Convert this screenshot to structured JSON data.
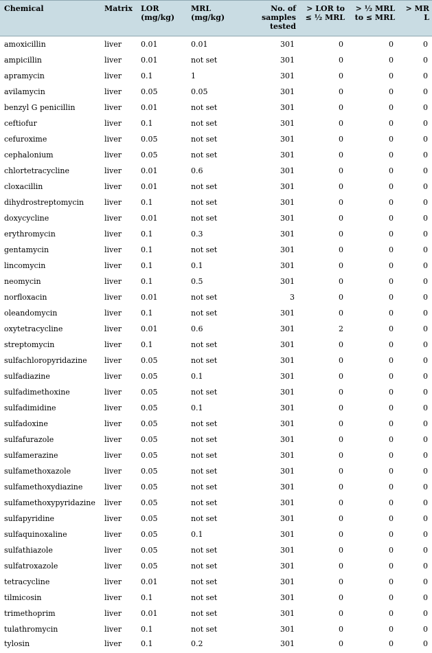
{
  "headers": {
    "chemical": "Chemical",
    "matrix": "Matrix",
    "lor": [
      "LOR",
      "(mg/kg)"
    ],
    "mrl": [
      "MRL",
      "(mg/kg)"
    ],
    "samples": [
      "No. of",
      "samples",
      "tested"
    ],
    "lor_half": [
      "> LOR to",
      "≤ ½ MRL"
    ],
    "half_mrl": [
      "> ½ MRL",
      "to ≤ MRL"
    ],
    "over_mrl": [
      "> MR",
      "L"
    ]
  },
  "rows": [
    {
      "chemical": "amoxicillin",
      "matrix": "liver",
      "lor": "0.01",
      "mrl": "0.01",
      "samples": "301",
      "lor_half": "0",
      "half_mrl": "0",
      "over_mrl": "0"
    },
    {
      "chemical": "ampicillin",
      "matrix": "liver",
      "lor": "0.01",
      "mrl": "not set",
      "samples": "301",
      "lor_half": "0",
      "half_mrl": "0",
      "over_mrl": "0"
    },
    {
      "chemical": "apramycin",
      "matrix": "liver",
      "lor": "0.1",
      "mrl": "1",
      "samples": "301",
      "lor_half": "0",
      "half_mrl": "0",
      "over_mrl": "0"
    },
    {
      "chemical": "avilamycin",
      "matrix": "liver",
      "lor": "0.05",
      "mrl": "0.05",
      "samples": "301",
      "lor_half": "0",
      "half_mrl": "0",
      "over_mrl": "0"
    },
    {
      "chemical": "benzyl G penicillin",
      "matrix": "liver",
      "lor": "0.01",
      "mrl": "not set",
      "samples": "301",
      "lor_half": "0",
      "half_mrl": "0",
      "over_mrl": "0"
    },
    {
      "chemical": "ceftiofur",
      "matrix": "liver",
      "lor": "0.1",
      "mrl": "not set",
      "samples": "301",
      "lor_half": "0",
      "half_mrl": "0",
      "over_mrl": "0"
    },
    {
      "chemical": "cefuroxime",
      "matrix": "liver",
      "lor": "0.05",
      "mrl": "not set",
      "samples": "301",
      "lor_half": "0",
      "half_mrl": "0",
      "over_mrl": "0"
    },
    {
      "chemical": "cephalonium",
      "matrix": "liver",
      "lor": "0.05",
      "mrl": "not set",
      "samples": "301",
      "lor_half": "0",
      "half_mrl": "0",
      "over_mrl": "0"
    },
    {
      "chemical": "chlortetracycline",
      "matrix": "liver",
      "lor": "0.01",
      "mrl": "0.6",
      "samples": "301",
      "lor_half": "0",
      "half_mrl": "0",
      "over_mrl": "0"
    },
    {
      "chemical": "cloxacillin",
      "matrix": "liver",
      "lor": "0.01",
      "mrl": "not set",
      "samples": "301",
      "lor_half": "0",
      "half_mrl": "0",
      "over_mrl": "0"
    },
    {
      "chemical": "dihydrostreptomycin",
      "matrix": "liver",
      "lor": "0.1",
      "mrl": "not set",
      "samples": "301",
      "lor_half": "0",
      "half_mrl": "0",
      "over_mrl": "0"
    },
    {
      "chemical": "doxycycline",
      "matrix": "liver",
      "lor": "0.01",
      "mrl": "not set",
      "samples": "301",
      "lor_half": "0",
      "half_mrl": "0",
      "over_mrl": "0"
    },
    {
      "chemical": "erythromycin",
      "matrix": "liver",
      "lor": "0.1",
      "mrl": "0.3",
      "samples": "301",
      "lor_half": "0",
      "half_mrl": "0",
      "over_mrl": "0"
    },
    {
      "chemical": "gentamycin",
      "matrix": "liver",
      "lor": "0.1",
      "mrl": "not set",
      "samples": "301",
      "lor_half": "0",
      "half_mrl": "0",
      "over_mrl": "0"
    },
    {
      "chemical": "lincomycin",
      "matrix": "liver",
      "lor": "0.1",
      "mrl": "0.1",
      "samples": "301",
      "lor_half": "0",
      "half_mrl": "0",
      "over_mrl": "0"
    },
    {
      "chemical": "neomycin",
      "matrix": "liver",
      "lor": "0.1",
      "mrl": "0.5",
      "samples": "301",
      "lor_half": "0",
      "half_mrl": "0",
      "over_mrl": "0"
    },
    {
      "chemical": "norfloxacin",
      "matrix": "liver",
      "lor": "0.01",
      "mrl": "not set",
      "samples": "3",
      "lor_half": "0",
      "half_mrl": "0",
      "over_mrl": "0"
    },
    {
      "chemical": "oleandomycin",
      "matrix": "liver",
      "lor": "0.1",
      "mrl": "not set",
      "samples": "301",
      "lor_half": "0",
      "half_mrl": "0",
      "over_mrl": "0"
    },
    {
      "chemical": "oxytetracycline",
      "matrix": "liver",
      "lor": "0.01",
      "mrl": "0.6",
      "samples": "301",
      "lor_half": "2",
      "half_mrl": "0",
      "over_mrl": "0"
    },
    {
      "chemical": "streptomycin",
      "matrix": "liver",
      "lor": "0.1",
      "mrl": "not set",
      "samples": "301",
      "lor_half": "0",
      "half_mrl": "0",
      "over_mrl": "0"
    },
    {
      "chemical": "sulfachloropyridazine",
      "matrix": "liver",
      "lor": "0.05",
      "mrl": "not set",
      "samples": "301",
      "lor_half": "0",
      "half_mrl": "0",
      "over_mrl": "0"
    },
    {
      "chemical": "sulfadiazine",
      "matrix": "liver",
      "lor": "0.05",
      "mrl": "0.1",
      "samples": "301",
      "lor_half": "0",
      "half_mrl": "0",
      "over_mrl": "0"
    },
    {
      "chemical": "sulfadimethoxine",
      "matrix": "liver",
      "lor": "0.05",
      "mrl": "not set",
      "samples": "301",
      "lor_half": "0",
      "half_mrl": "0",
      "over_mrl": "0"
    },
    {
      "chemical": "sulfadimidine",
      "matrix": "liver",
      "lor": "0.05",
      "mrl": "0.1",
      "samples": "301",
      "lor_half": "0",
      "half_mrl": "0",
      "over_mrl": "0"
    },
    {
      "chemical": "sulfadoxine",
      "matrix": "liver",
      "lor": "0.05",
      "mrl": "not set",
      "samples": "301",
      "lor_half": "0",
      "half_mrl": "0",
      "over_mrl": "0"
    },
    {
      "chemical": "sulfafurazole",
      "matrix": "liver",
      "lor": "0.05",
      "mrl": "not set",
      "samples": "301",
      "lor_half": "0",
      "half_mrl": "0",
      "over_mrl": "0"
    },
    {
      "chemical": "sulfamerazine",
      "matrix": "liver",
      "lor": "0.05",
      "mrl": "not set",
      "samples": "301",
      "lor_half": "0",
      "half_mrl": "0",
      "over_mrl": "0"
    },
    {
      "chemical": "sulfamethoxazole",
      "matrix": "liver",
      "lor": "0.05",
      "mrl": "not set",
      "samples": "301",
      "lor_half": "0",
      "half_mrl": "0",
      "over_mrl": "0"
    },
    {
      "chemical": "sulfamethoxydiazine",
      "matrix": "liver",
      "lor": "0.05",
      "mrl": "not set",
      "samples": "301",
      "lor_half": "0",
      "half_mrl": "0",
      "over_mrl": "0"
    },
    {
      "chemical": "sulfamethoxypyridazine",
      "matrix": "liver",
      "lor": "0.05",
      "mrl": "not set",
      "samples": "301",
      "lor_half": "0",
      "half_mrl": "0",
      "over_mrl": "0"
    },
    {
      "chemical": "sulfapyridine",
      "matrix": "liver",
      "lor": "0.05",
      "mrl": "not set",
      "samples": "301",
      "lor_half": "0",
      "half_mrl": "0",
      "over_mrl": "0"
    },
    {
      "chemical": "sulfaquinoxaline",
      "matrix": "liver",
      "lor": "0.05",
      "mrl": "0.1",
      "samples": "301",
      "lor_half": "0",
      "half_mrl": "0",
      "over_mrl": "0"
    },
    {
      "chemical": "sulfathiazole",
      "matrix": "liver",
      "lor": "0.05",
      "mrl": "not set",
      "samples": "301",
      "lor_half": "0",
      "half_mrl": "0",
      "over_mrl": "0"
    },
    {
      "chemical": "sulfatroxazole",
      "matrix": "liver",
      "lor": "0.05",
      "mrl": "not set",
      "samples": "301",
      "lor_half": "0",
      "half_mrl": "0",
      "over_mrl": "0"
    },
    {
      "chemical": "tetracycline",
      "matrix": "liver",
      "lor": "0.01",
      "mrl": "not set",
      "samples": "301",
      "lor_half": "0",
      "half_mrl": "0",
      "over_mrl": "0"
    },
    {
      "chemical": "tilmicosin",
      "matrix": "liver",
      "lor": "0.1",
      "mrl": "not set",
      "samples": "301",
      "lor_half": "0",
      "half_mrl": "0",
      "over_mrl": "0"
    },
    {
      "chemical": "trimethoprim",
      "matrix": "liver",
      "lor": "0.01",
      "mrl": "not set",
      "samples": "301",
      "lor_half": "0",
      "half_mrl": "0",
      "over_mrl": "0"
    },
    {
      "chemical": "tulathromycin",
      "matrix": "liver",
      "lor": "0.1",
      "mrl": "not set",
      "samples": "301",
      "lor_half": "0",
      "half_mrl": "0",
      "over_mrl": "0"
    },
    {
      "chemical": "tylosin",
      "matrix": "liver",
      "lor": "0.1",
      "mrl": "0.2",
      "samples": "301",
      "lor_half": "0",
      "half_mrl": "0",
      "over_mrl": "0"
    }
  ]
}
